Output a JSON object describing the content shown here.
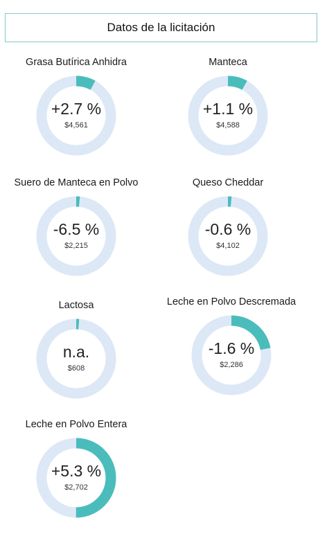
{
  "header": {
    "title": "Datos de la licitación"
  },
  "colors": {
    "track": "#dde8f6",
    "fill": "#4bbcbc",
    "border": "#7fc9c6"
  },
  "cards": [
    {
      "title": "Grasa Butírica Anhidra",
      "percent": "+2.7 %",
      "price": "$4,561",
      "fill_fraction": 0.08
    },
    {
      "title": "Manteca",
      "percent": "+1.1 %",
      "price": "$4,588",
      "fill_fraction": 0.08
    },
    {
      "title": "Suero de Manteca en Polvo",
      "percent": "-6.5 %",
      "price": "$2,215",
      "fill_fraction": 0.015
    },
    {
      "title": "Queso Cheddar",
      "percent": "-0.6 %",
      "price": "$4,102",
      "fill_fraction": 0.015
    },
    {
      "title": "Lactosa",
      "percent": "n.a.",
      "price": "$608",
      "fill_fraction": 0.012
    },
    {
      "title": "Leche en Polvo Descremada",
      "percent": "-1.6 %",
      "price": "$2,286",
      "fill_fraction": 0.22
    },
    {
      "title": "Leche en Polvo Entera",
      "percent": "+5.3 %",
      "price": "$2,702",
      "fill_fraction": 0.5
    }
  ]
}
